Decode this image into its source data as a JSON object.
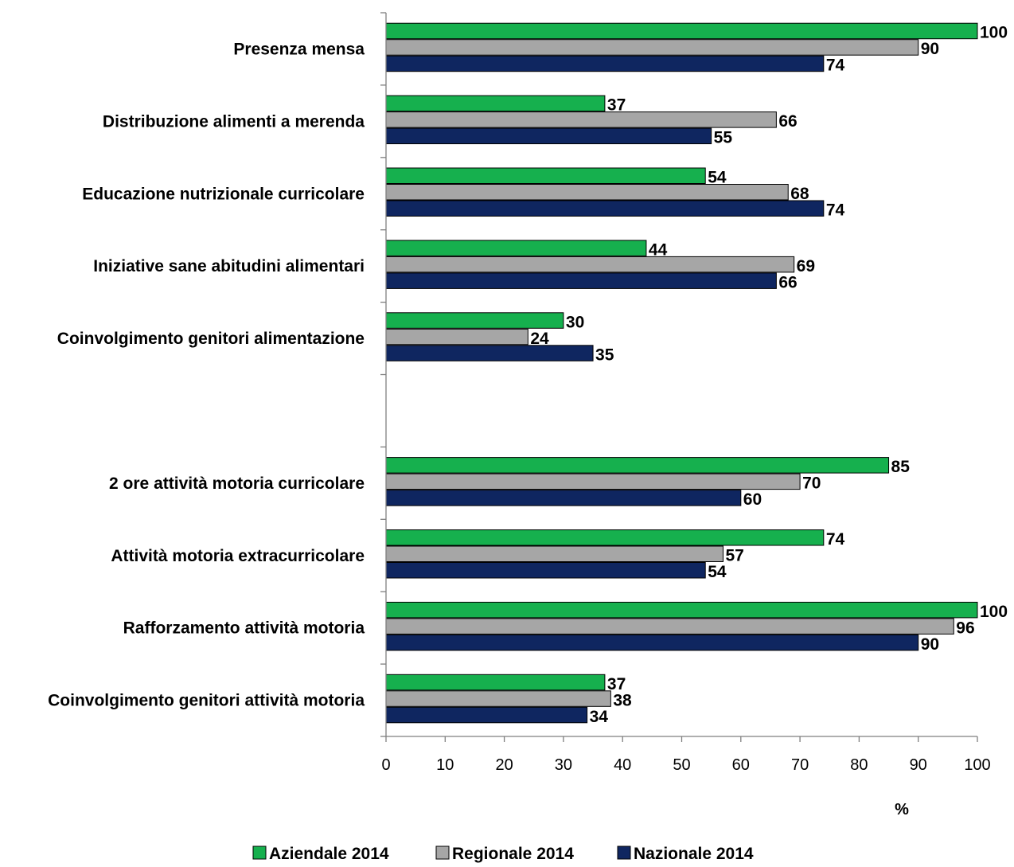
{
  "chart_data": {
    "type": "bar",
    "orientation": "horizontal",
    "categories": [
      "Presenza mensa",
      "Distribuzione alimenti a merenda",
      "Educazione nutrizionale curricolare",
      "Iniziative sane abitudini alimentari",
      "Coinvolgimento genitori alimentazione",
      "",
      "2 ore attività motoria curricolare",
      "Attività motoria extracurricolare",
      "Rafforzamento attività motoria",
      "Coinvolgimento genitori attività motoria"
    ],
    "series": [
      {
        "name": "Aziendale 2014",
        "color": "#16b04e",
        "values": [
          100,
          37,
          54,
          44,
          30,
          null,
          85,
          74,
          100,
          37
        ]
      },
      {
        "name": "Regionale 2014",
        "color": "#a6a6a6",
        "values": [
          90,
          66,
          68,
          69,
          24,
          null,
          70,
          57,
          96,
          38
        ]
      },
      {
        "name": "Nazionale 2014",
        "color": "#0f2660",
        "values": [
          74,
          55,
          74,
          66,
          35,
          null,
          60,
          54,
          90,
          34
        ]
      }
    ],
    "xlabel": "%",
    "xticks": [
      "0",
      "10",
      "20",
      "30",
      "40",
      "50",
      "60",
      "70",
      "80",
      "90",
      "100"
    ],
    "xlim": [
      0,
      100
    ],
    "grid": false,
    "legend_position": "bottom"
  }
}
